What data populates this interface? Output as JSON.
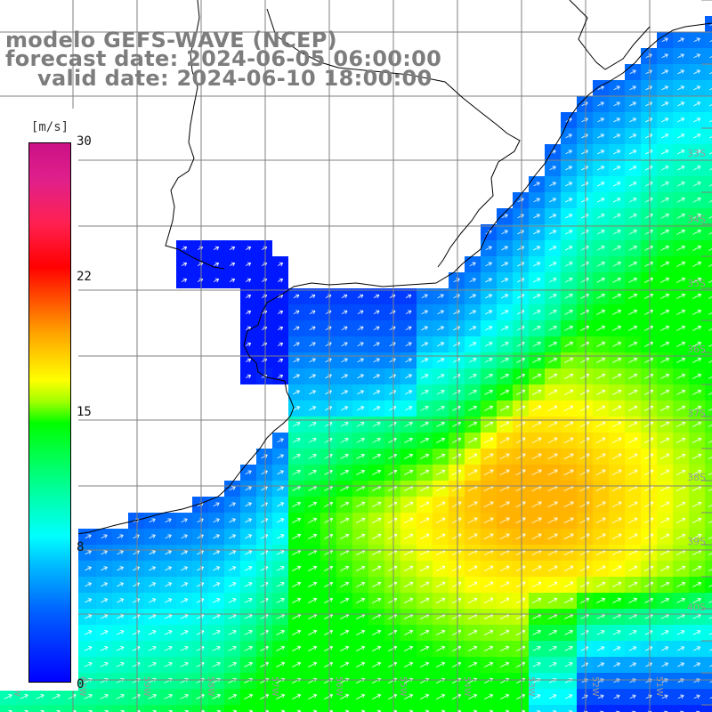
{
  "header": {
    "line1": "modelo GEFS-WAVE (NCEP)",
    "line2": "forecast date: 2024-06-05 06:00:00",
    "line3": "valid date: 2024-06-10 18:00:00"
  },
  "colorbar": {
    "unit": "[m/s]",
    "ticks": [
      "30",
      "22",
      "15",
      "8",
      "0"
    ],
    "colors": [
      "#0000ff",
      "#00ffff",
      "#00ff00",
      "#ffff00",
      "#ff0000",
      "#cc1188"
    ]
  },
  "map": {
    "lat_labels": [
      "33S",
      "34S",
      "35S",
      "36S",
      "37S",
      "38S",
      "39S",
      "40S"
    ],
    "lon_labels": [
      "61W",
      "60W",
      "59W",
      "58W",
      "57W",
      "56W",
      "55W",
      "54W",
      "53W",
      "52W",
      "51W"
    ],
    "land_color": "#ffffff",
    "grid_color": "#808080",
    "coast_color": "#000000"
  }
}
